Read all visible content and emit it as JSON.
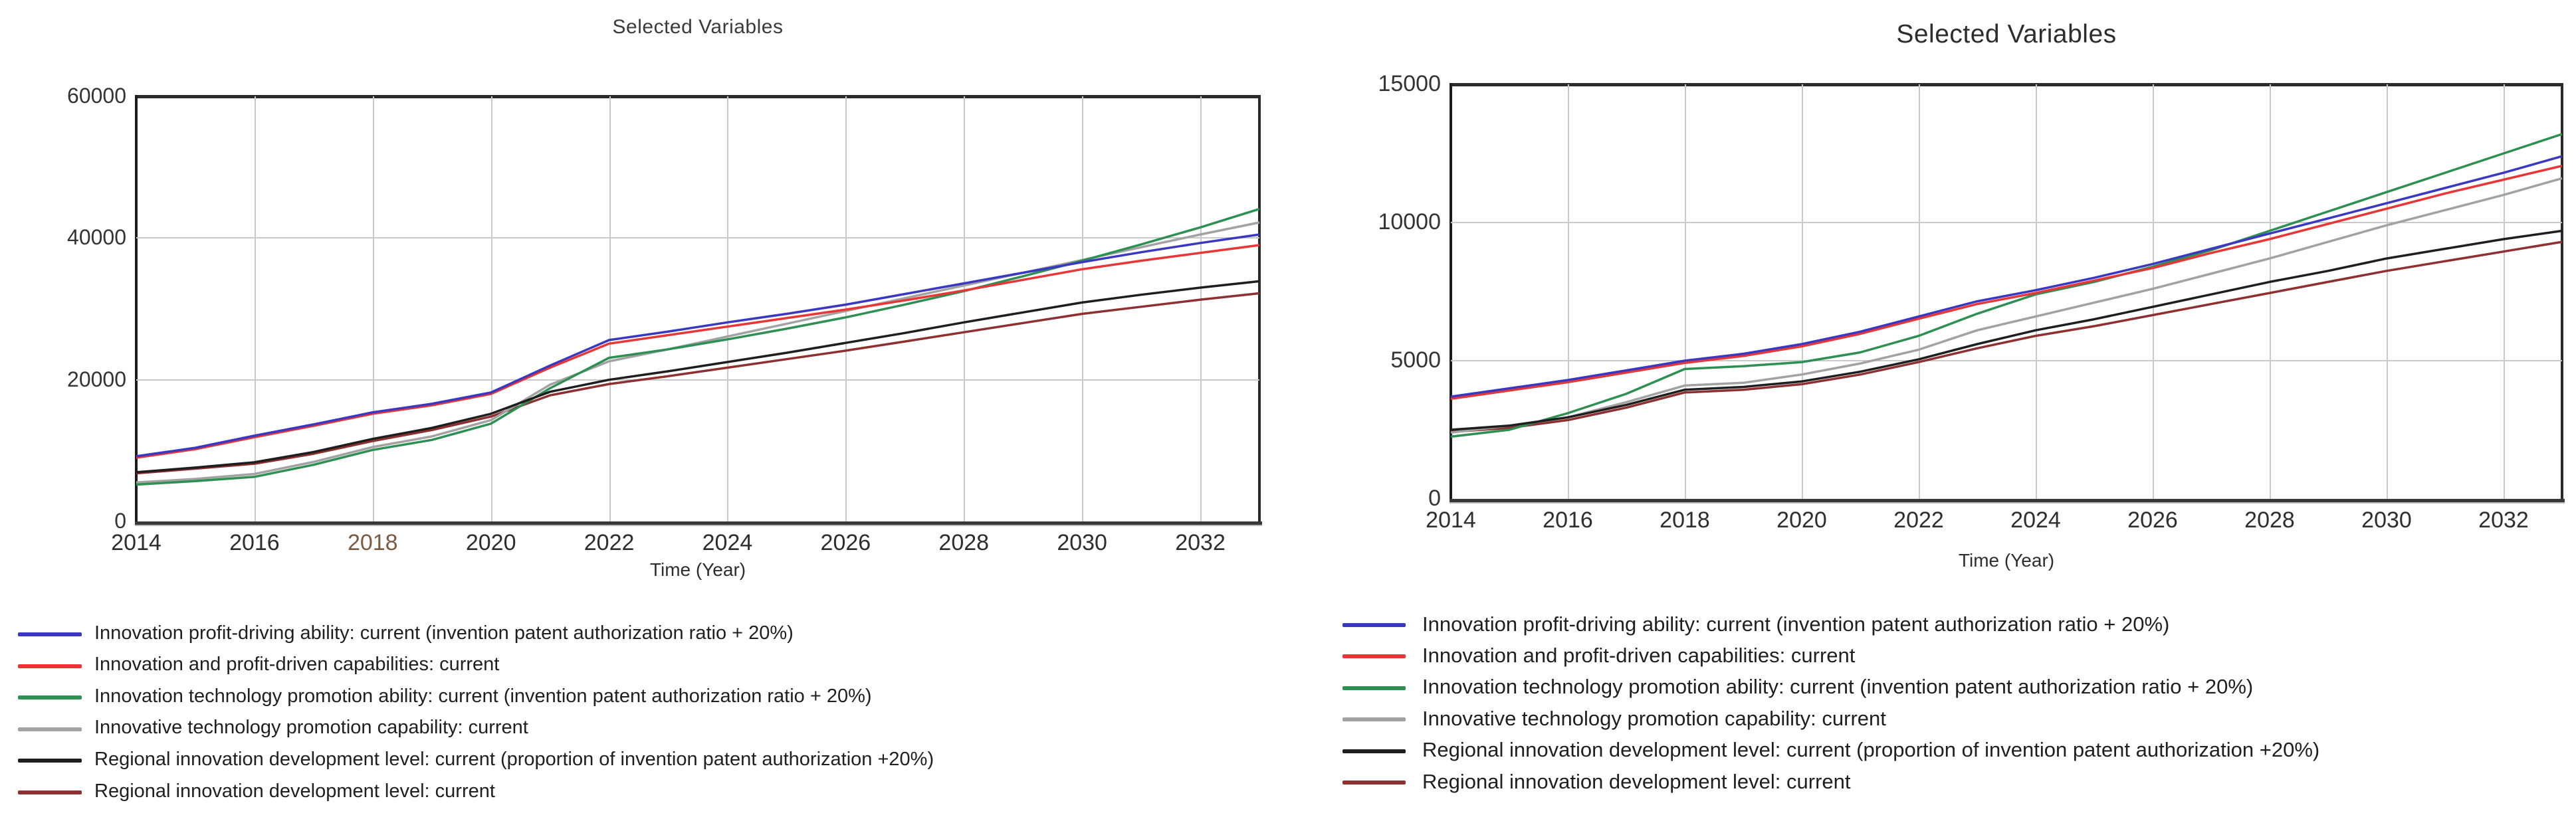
{
  "chart_data": [
    {
      "type": "line",
      "title": "Selected Variables",
      "xlabel": "Time (Year)",
      "x": [
        2014,
        2015,
        2016,
        2017,
        2018,
        2019,
        2020,
        2021,
        2022,
        2023,
        2024,
        2025,
        2026,
        2027,
        2028,
        2029,
        2030,
        2031,
        2032,
        2033
      ],
      "x_tick_labels": [
        "2014",
        "2016",
        "2018",
        "2020",
        "2022",
        "2024",
        "2026",
        "2028",
        "2030",
        "2032"
      ],
      "x_tick_years": [
        2014,
        2016,
        2018,
        2020,
        2022,
        2024,
        2026,
        2028,
        2030,
        2032
      ],
      "x_tick_colors": [
        "#2e2e2e",
        "#2e2e2e",
        "#7d5a42",
        "#2e2e2e",
        "#2e2e2e",
        "#2e2e2e",
        "#2e2e2e",
        "#2e2e2e",
        "#2e2e2e",
        "#2e2e2e"
      ],
      "y_tick_labels": [
        "0",
        "20000",
        "40000",
        "60000"
      ],
      "y_tick_values": [
        0,
        20000,
        40000,
        60000
      ],
      "ylim": [
        0,
        60000
      ],
      "xlim": [
        2014,
        2033
      ],
      "grid": true,
      "legend_position": "below-left",
      "series": [
        {
          "name": "Innovation profit-driving ability: current (invention patent authorization ratio + 20%)",
          "color": "#3a38c0",
          "values": [
            9200,
            10400,
            12100,
            13700,
            15400,
            16600,
            18200,
            22000,
            25600,
            26800,
            28100,
            29300,
            30600,
            32100,
            33600,
            35100,
            36600,
            38000,
            39300,
            40500
          ]
        },
        {
          "name": "Innovation and profit-driven capabilities: current",
          "color": "#e83535",
          "values": [
            9000,
            10200,
            11900,
            13500,
            15200,
            16400,
            18000,
            21700,
            25100,
            26300,
            27500,
            28700,
            29900,
            31200,
            32600,
            34100,
            35600,
            36800,
            37900,
            39000
          ]
        },
        {
          "name": "Innovation technology promotion ability: current (invention patent authorization ratio + 20%)",
          "color": "#2e8f52",
          "values": [
            5200,
            5700,
            6300,
            8000,
            10100,
            11500,
            13800,
            18800,
            23100,
            24300,
            25700,
            27200,
            28800,
            30600,
            32500,
            34600,
            36800,
            39100,
            41500,
            44100
          ]
        },
        {
          "name": "Innovative technology promotion capability: current",
          "color": "#a2a2a2",
          "values": [
            5500,
            6000,
            6700,
            8400,
            10500,
            12000,
            14300,
            19300,
            22600,
            24300,
            26100,
            27900,
            29700,
            31500,
            33300,
            35100,
            36900,
            38700,
            40500,
            42200
          ]
        },
        {
          "name": "Regional innovation development level: current (proportion of invention patent authorization +20%)",
          "color": "#1e1e1e",
          "values": [
            6950,
            7600,
            8350,
            9800,
            11650,
            13200,
            15200,
            18300,
            20000,
            21200,
            22500,
            23800,
            25200,
            26600,
            28100,
            29500,
            30900,
            32000,
            33000,
            33900
          ]
        },
        {
          "name": "Regional innovation development level: current",
          "color": "#8e3030",
          "values": [
            6800,
            7450,
            8150,
            9550,
            11350,
            12900,
            14800,
            17800,
            19400,
            20500,
            21700,
            22900,
            24100,
            25400,
            26700,
            28000,
            29300,
            30300,
            31300,
            32200
          ]
        }
      ]
    },
    {
      "type": "line",
      "title": "Selected Variables",
      "xlabel": "Time (Year)",
      "x": [
        2014,
        2015,
        2016,
        2017,
        2018,
        2019,
        2020,
        2021,
        2022,
        2023,
        2024,
        2025,
        2026,
        2027,
        2028,
        2029,
        2030,
        2031,
        2032,
        2033
      ],
      "x_tick_labels": [
        "2014",
        "2016",
        "2018",
        "2020",
        "2022",
        "2024",
        "2026",
        "2028",
        "2030",
        "2032"
      ],
      "x_tick_years": [
        2014,
        2016,
        2018,
        2020,
        2022,
        2024,
        2026,
        2028,
        2030,
        2032
      ],
      "x_tick_colors": [
        "#2e2e2e",
        "#2e2e2e",
        "#2e2e2e",
        "#2e2e2e",
        "#2e2e2e",
        "#2e2e2e",
        "#2e2e2e",
        "#2e2e2e",
        "#2e2e2e",
        "#2e2e2e"
      ],
      "y_tick_labels": [
        "0",
        "5000",
        "10000",
        "15000"
      ],
      "y_tick_values": [
        0,
        5000,
        10000,
        15000
      ],
      "ylim": [
        0,
        15000
      ],
      "xlim": [
        2014,
        2033
      ],
      "grid": true,
      "legend_position": "below-left",
      "series": [
        {
          "name": "Innovation profit-driving ability: current (invention patent authorization ratio + 20%)",
          "color": "#3a38c0",
          "values": [
            3700,
            4000,
            4300,
            4650,
            5000,
            5250,
            5600,
            6050,
            6600,
            7150,
            7550,
            8000,
            8500,
            9050,
            9600,
            10150,
            10700,
            11250,
            11800,
            12400
          ]
        },
        {
          "name": "Innovation and profit-driven capabilities: current",
          "color": "#e83535",
          "values": [
            3620,
            3920,
            4220,
            4570,
            4920,
            5170,
            5520,
            5970,
            6520,
            7050,
            7450,
            7900,
            8350,
            8900,
            9400,
            9950,
            10500,
            11050,
            11550,
            12050
          ]
        },
        {
          "name": "Innovation technology promotion ability: current (invention patent authorization ratio + 20%)",
          "color": "#2e8f52",
          "values": [
            2250,
            2500,
            3100,
            3800,
            4700,
            4800,
            4950,
            5300,
            5900,
            6700,
            7400,
            7850,
            8400,
            9000,
            9700,
            10400,
            11100,
            11800,
            12500,
            13200
          ]
        },
        {
          "name": "Innovative technology promotion capability: current",
          "color": "#a2a2a2",
          "values": [
            2400,
            2650,
            2950,
            3500,
            4100,
            4200,
            4500,
            4900,
            5400,
            6100,
            6600,
            7100,
            7600,
            8150,
            8700,
            9300,
            9900,
            10450,
            11000,
            11600
          ]
        },
        {
          "name": "Regional innovation development level: current (proportion of invention patent authorization +20%)",
          "color": "#1e1e1e",
          "values": [
            2500,
            2650,
            2950,
            3400,
            3950,
            4050,
            4250,
            4600,
            5050,
            5600,
            6100,
            6500,
            6950,
            7400,
            7850,
            8250,
            8700,
            9050,
            9400,
            9700
          ]
        },
        {
          "name": "Regional innovation development level: current",
          "color": "#8e3030",
          "values": [
            2420,
            2570,
            2850,
            3300,
            3850,
            3950,
            4150,
            4500,
            4950,
            5450,
            5900,
            6250,
            6650,
            7050,
            7450,
            7850,
            8250,
            8600,
            8950,
            9300
          ]
        }
      ]
    }
  ]
}
